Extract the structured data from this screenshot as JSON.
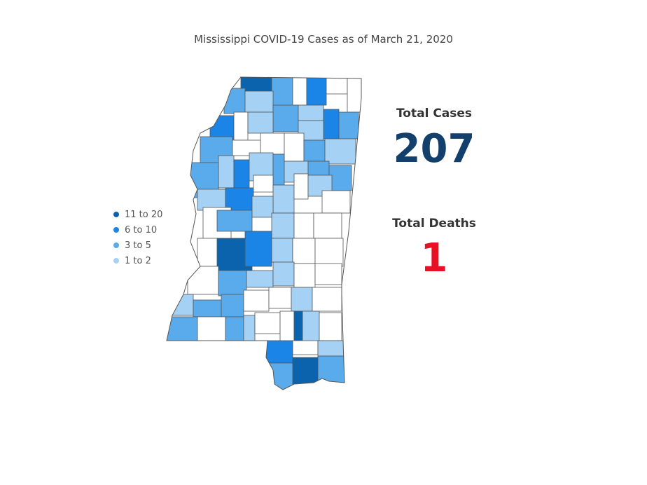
{
  "title": "Mississippi COVID-19 Cases as of March 21, 2020",
  "legend": [
    {
      "label": "11 to 20",
      "color": "#0b63ad"
    },
    {
      "label": "6 to 10",
      "color": "#1a85e6"
    },
    {
      "label": "3 to 5",
      "color": "#5aabeb"
    },
    {
      "label": "1 to 2",
      "color": "#a5d1f4"
    }
  ],
  "stats": {
    "total_cases_label": "Total Cases",
    "total_cases": "207",
    "total_deaths_label": "Total Deaths",
    "total_deaths": "1"
  },
  "colors": {
    "none": "#ffffff",
    "bin_1_2": "#a5d1f4",
    "bin_3_5": "#5aabeb",
    "bin_6_10": "#1a85e6",
    "bin_11_20": "#0b63ad",
    "cases_text": "#123f6b",
    "deaths_text": "#e81123"
  }
}
